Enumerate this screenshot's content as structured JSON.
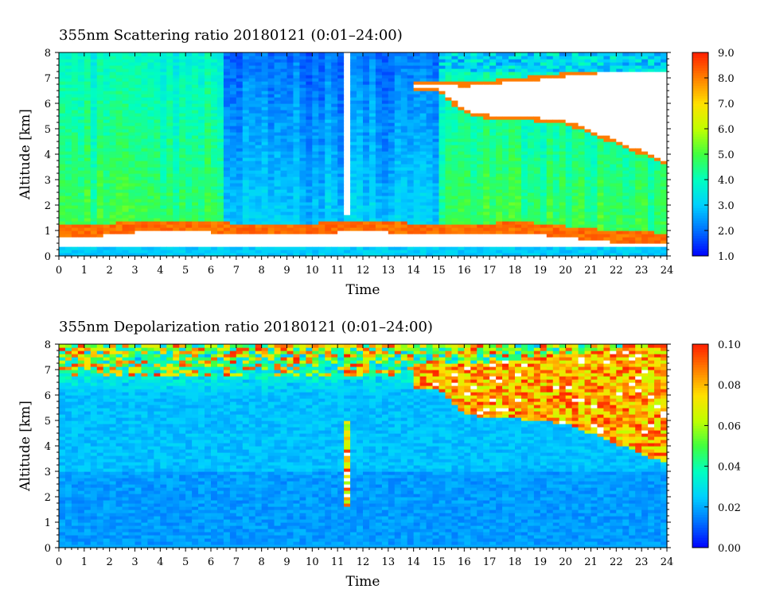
{
  "chart_data": [
    {
      "type": "heatmap",
      "title": "355nm Scattering ratio  20180121 (0:01–24:00)",
      "xlabel": "Time",
      "ylabel": "Altitude [km]",
      "xlim": [
        0,
        24
      ],
      "ylim": [
        0,
        8
      ],
      "x_ticks": [
        "0",
        "1",
        "2",
        "3",
        "4",
        "5",
        "6",
        "7",
        "8",
        "9",
        "10",
        "11",
        "12",
        "13",
        "14",
        "15",
        "16",
        "17",
        "18",
        "19",
        "20",
        "21",
        "22",
        "23",
        "24"
      ],
      "y_ticks": [
        "0",
        "1",
        "2",
        "3",
        "4",
        "5",
        "6",
        "7",
        "8"
      ],
      "colorbar": {
        "range": [
          1.0,
          9.0
        ],
        "ticks": [
          "1.0",
          "2.0",
          "3.0",
          "4.0",
          "5.0",
          "6.0",
          "7.0",
          "8.0",
          "9.0"
        ],
        "colors": [
          "#0000ff",
          "#0070ff",
          "#00d0ff",
          "#00ffc0",
          "#40ff40",
          "#c0ff00",
          "#ffe000",
          "#ff8000",
          "#ff2000"
        ]
      },
      "features": {
        "boundary_layer_top_km": [
          1.2,
          1.2,
          1.3,
          1.4,
          1.4,
          1.4,
          1.4,
          1.3,
          1.3,
          1.3,
          1.3,
          1.4,
          1.4,
          1.4,
          1.3,
          1.3,
          1.3,
          1.3,
          1.4,
          1.3,
          1.2,
          1.1,
          1.0,
          1.0,
          0.9
        ],
        "cloud_base_km": [
          null,
          null,
          null,
          null,
          null,
          null,
          null,
          null,
          null,
          null,
          null,
          null,
          null,
          null,
          null,
          6.5,
          5.6,
          5.4,
          5.4,
          5.3,
          5.2,
          4.8,
          4.4,
          4.0,
          3.6
        ],
        "cloud_top_km": [
          null,
          null,
          null,
          null,
          null,
          null,
          null,
          null,
          null,
          null,
          null,
          null,
          null,
          null,
          null,
          6.9,
          6.8,
          6.9,
          7.0,
          7.1,
          7.2,
          7.3,
          7.4,
          7.5,
          7.6
        ]
      }
    },
    {
      "type": "heatmap",
      "title": "355nm Depolarization ratio  20180121 (0:01–24:00)",
      "xlabel": "Time",
      "ylabel": "Altitude [km]",
      "xlim": [
        0,
        24
      ],
      "ylim": [
        0,
        8
      ],
      "x_ticks": [
        "0",
        "1",
        "2",
        "3",
        "4",
        "5",
        "6",
        "7",
        "8",
        "9",
        "10",
        "11",
        "12",
        "13",
        "14",
        "15",
        "16",
        "17",
        "18",
        "19",
        "20",
        "21",
        "22",
        "23",
        "24"
      ],
      "y_ticks": [
        "0",
        "1",
        "2",
        "3",
        "4",
        "5",
        "6",
        "7",
        "8"
      ],
      "colorbar": {
        "range": [
          0.0,
          0.1
        ],
        "ticks": [
          "0.00",
          "0.02",
          "0.04",
          "0.06",
          "0.08",
          "0.10"
        ],
        "colors": [
          "#0000ff",
          "#0070ff",
          "#00d0ff",
          "#00ffc0",
          "#40ff40",
          "#c0ff00",
          "#ffe000",
          "#ff8000",
          "#ff2000"
        ]
      },
      "features": {
        "cloud_base_km": [
          null,
          null,
          null,
          null,
          null,
          null,
          null,
          null,
          null,
          null,
          null,
          null,
          null,
          null,
          null,
          6.5,
          5.6,
          5.4,
          5.4,
          5.3,
          5.2,
          4.8,
          4.4,
          4.0,
          3.6
        ],
        "cloud_top_km": [
          null,
          null,
          null,
          null,
          null,
          null,
          null,
          null,
          null,
          null,
          null,
          null,
          null,
          null,
          null,
          6.9,
          6.8,
          6.9,
          7.0,
          7.1,
          7.2,
          7.3,
          7.4,
          7.5,
          7.6
        ]
      }
    }
  ]
}
